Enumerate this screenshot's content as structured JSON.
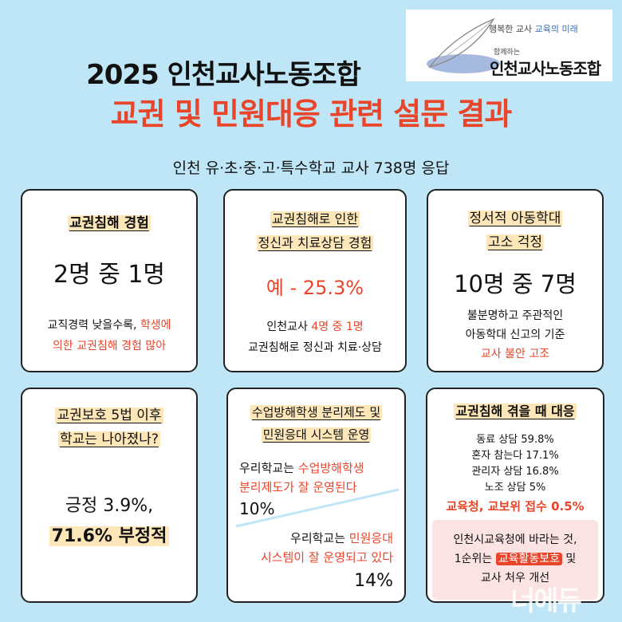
{
  "header": {
    "title_line1": "2025 인천교사노동조합",
    "title_line2": "교권 및 민원대응 관련 설문 결과",
    "subtitle": "인천 유·초·중·고·특수학교 교사 738명 응답"
  },
  "logo": {
    "slogan_a": "행복한 교사",
    "slogan_b": "교육의 미래",
    "with": "함께하는",
    "name": "인천교사노동조합"
  },
  "cards": {
    "c1": {
      "title": "교권침해 경험",
      "big": "2명 중 1명",
      "desc1a": "교직경력 낮을수록, ",
      "desc1b": "학생에",
      "desc2": "의한 교권침해 경험 많아"
    },
    "c2": {
      "title1": "교권침해로 인한",
      "title2": "정신과 치료상담 경험",
      "big": "예 - 25.3%",
      "desc1a": "인천교사 ",
      "desc1b": "4명 중 1명",
      "desc2": "교권침해로 정신과 치료·상담"
    },
    "c3": {
      "title1": "정서적 아동학대",
      "title2": "고소 걱정",
      "big": "10명 중 7명",
      "desc1": "불분명하고 주관적인",
      "desc2": "아동학대 신고의 기준",
      "desc3": "교사 불안 고조"
    },
    "c4": {
      "title1": "교권보호 5법 이후",
      "title2": "학교는 나아졌나?",
      "line1": "긍정 3.9%,",
      "line2": "71.6% 부정적"
    },
    "c5": {
      "title1": "수업방해학생 분리제도 및",
      "title2": "민원응대 시스템 운영",
      "a1a": "우리학교는 ",
      "a1b": "수업방해학생",
      "a2": "분리제도가 잘 운영된다",
      "a_pct": "10%",
      "b1a": "우리학교는 ",
      "b1b": "민원응대",
      "b2": "시스템이 잘 운영되고 있다",
      "b_pct": "14%"
    },
    "c6": {
      "title": "교권침해 겪을 때 대응",
      "items": [
        "동료 상담 59.8%",
        "혼자 참는다 17.1%",
        "관리자 상담 16.8%",
        "노조 상담 5%"
      ],
      "last": "교육청, 교보위 접수 0.5%",
      "box1": "인천시교육청에 바라는 것,",
      "box2a": "1순위는 ",
      "box2b": "교육활동보호",
      "box2c": " 및",
      "box3": "교사 처우 개선"
    }
  },
  "watermark": "너에듀"
}
